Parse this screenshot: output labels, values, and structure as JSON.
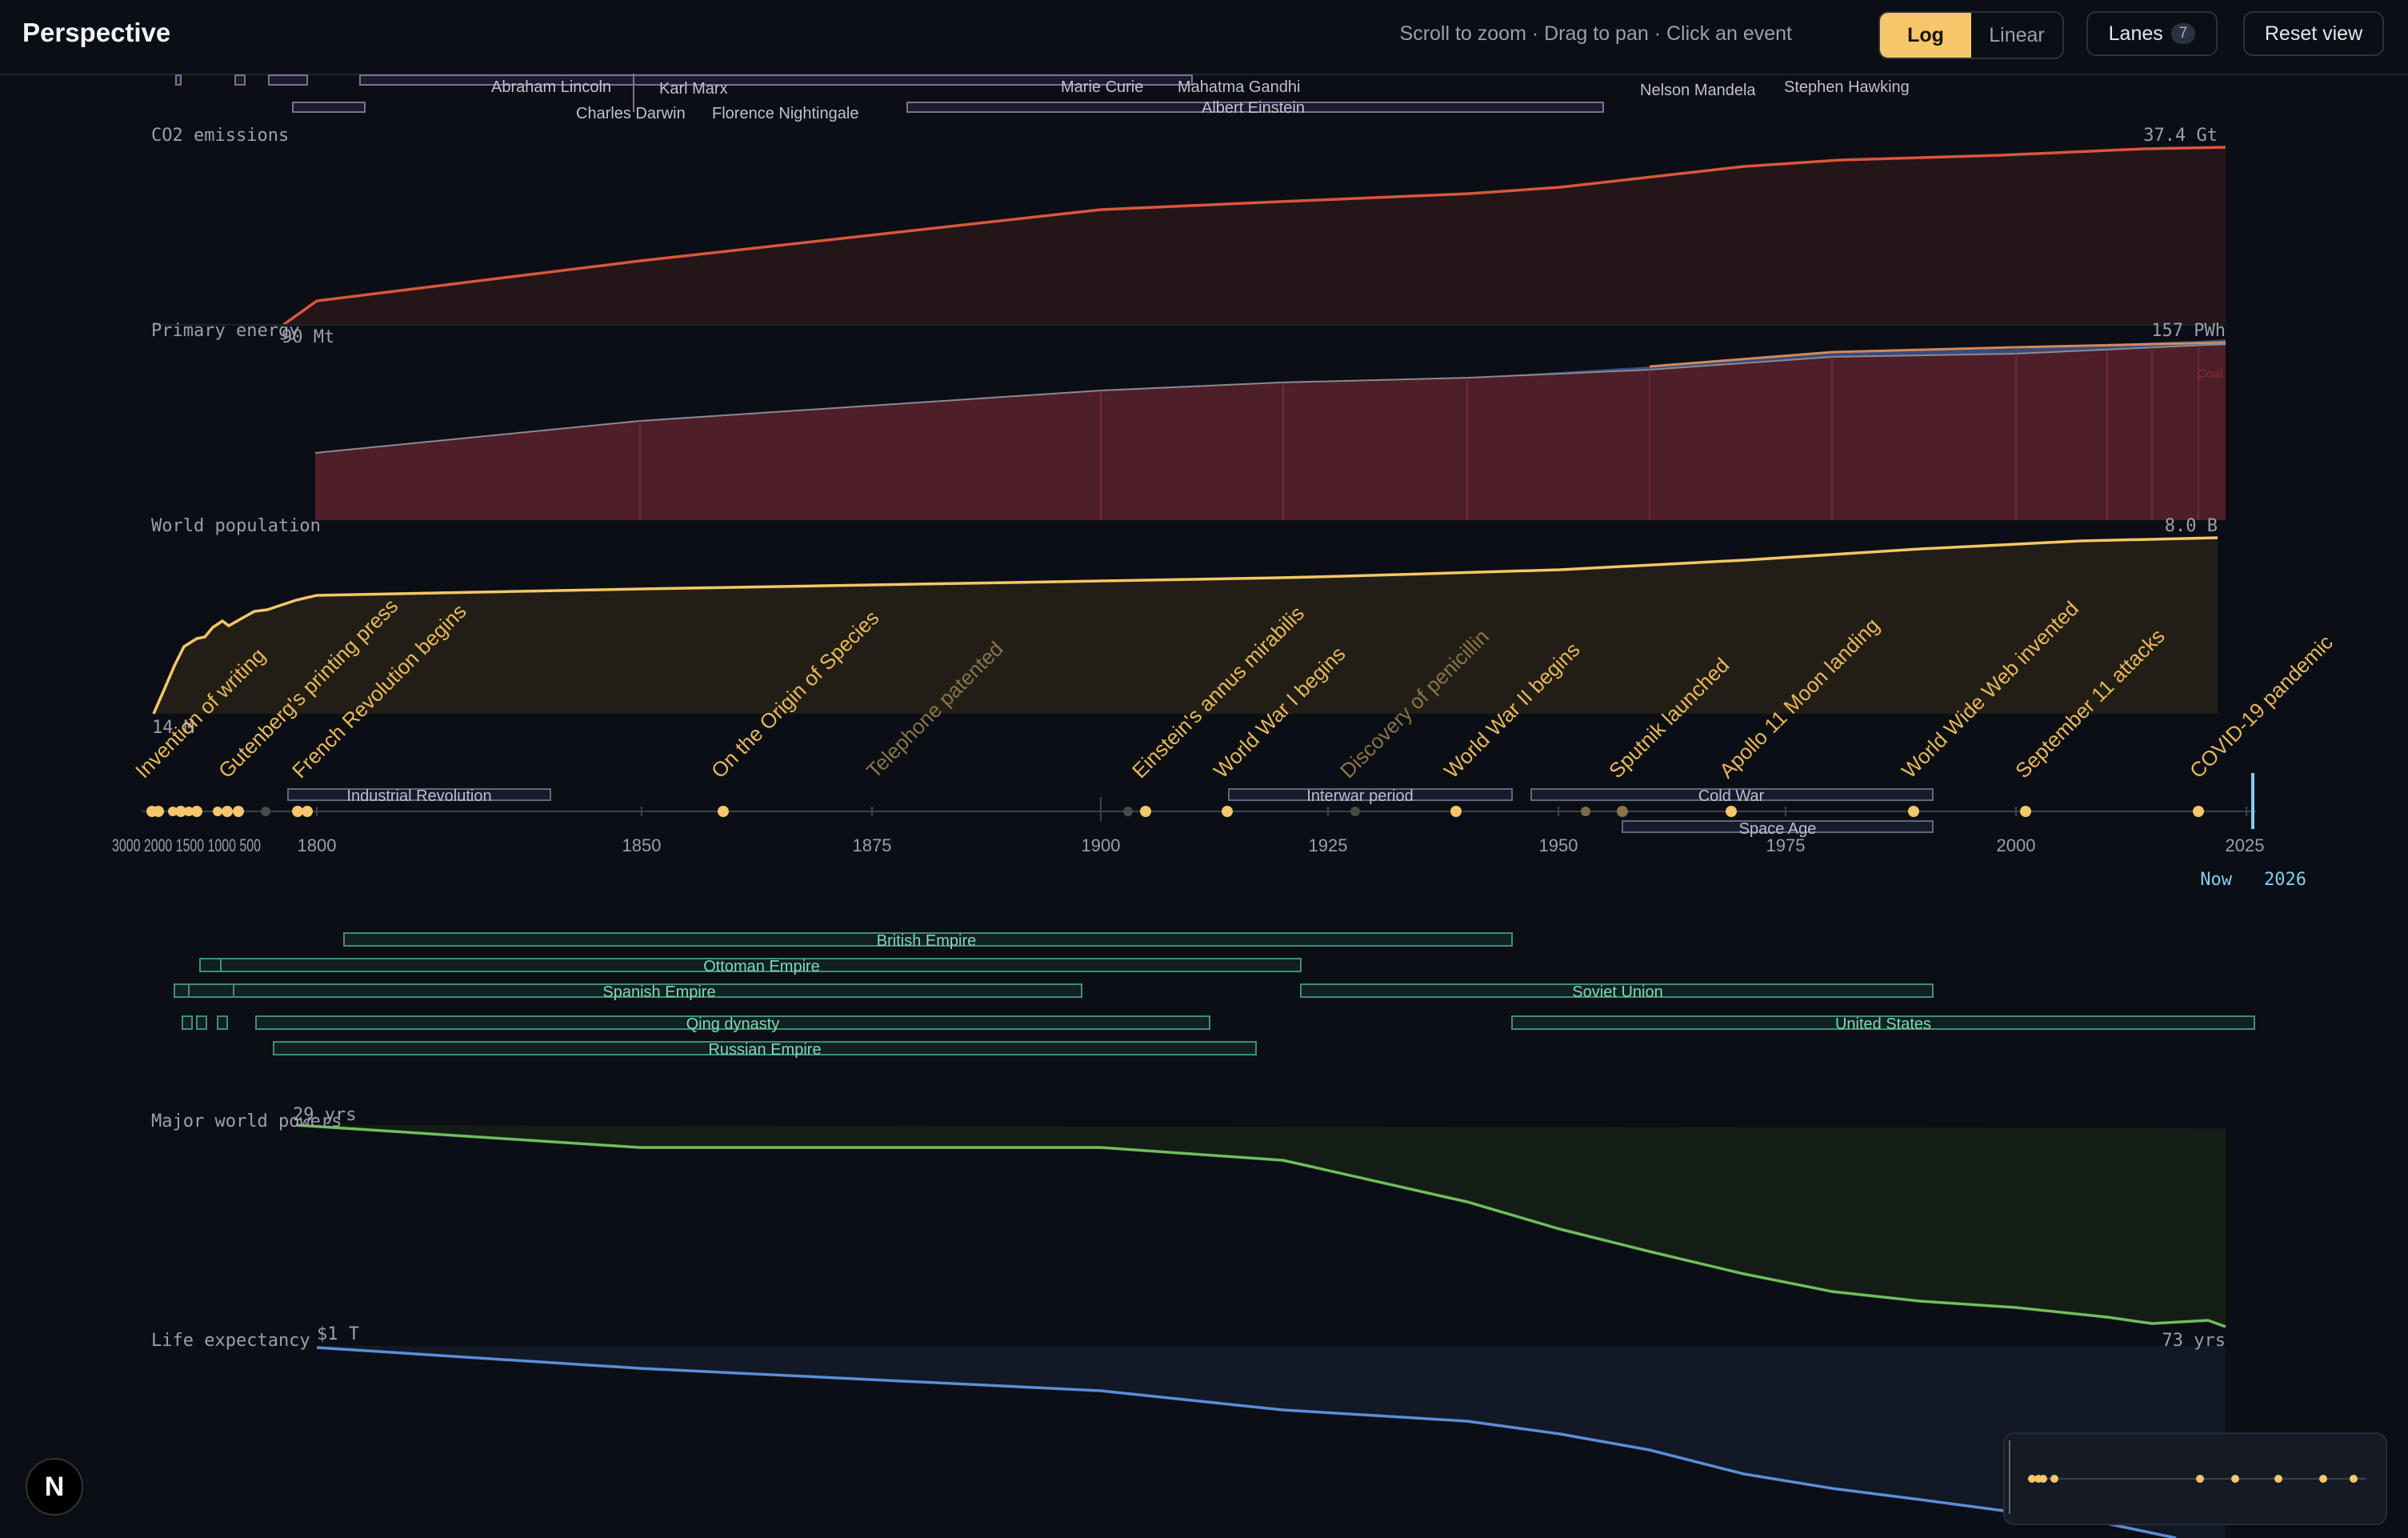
{
  "header": {
    "title": "Perspective",
    "hint": "Scroll to zoom · Drag to pan · Click an event",
    "scale_options": [
      "Log",
      "Linear"
    ],
    "active_scale": "Log",
    "lanes_label": "Lanes",
    "lanes_count": "7",
    "reset_label": "Reset view"
  },
  "axis": {
    "ticks": [
      "1800",
      "1850",
      "1875",
      "1900",
      "1925",
      "1950",
      "1975",
      "2000",
      "2025"
    ],
    "compressed_ticks": "3000 2000 1500 1000 500",
    "now_label": "Now",
    "now_year": "2026"
  },
  "people": [
    "Abraham Lincoln",
    "Karl Marx",
    "Charles Darwin",
    "Florence Nightingale",
    "Marie Curie",
    "Mahatma Gandhi",
    "Albert Einstein",
    "Nelson Mandela",
    "Stephen Hawking"
  ],
  "lanes": {
    "co2": {
      "label": "CO2 emissions",
      "max_label": "37.4 Gt",
      "min_label": "90 Mt"
    },
    "energy": {
      "label": "Primary energy",
      "max_label": "157 PWh",
      "source_label": "Coal"
    },
    "population": {
      "label": "World population",
      "max_label": "8.0 B",
      "min_label": "14 M"
    },
    "powers": {
      "label": "Major world powers",
      "max_label": "29 yrs"
    },
    "life": {
      "label": "Life expectancy",
      "max_label": "$1 T",
      "end_label": "73 yrs"
    }
  },
  "events": [
    "Invention of writing",
    "Gutenberg's printing press",
    "French Revolution begins",
    "On the Origin of Species",
    "Telephone patented",
    "Einstein's annus mirabilis",
    "World War I begins",
    "Discovery of penicillin",
    "World War II begins",
    "Sputnik launched",
    "Apollo 11 Moon landing",
    "World Wide Web invented",
    "September 11 attacks",
    "COVID-19 pandemic"
  ],
  "periods": [
    "Industrial Revolution",
    "Interwar period",
    "Cold War",
    "Space Age"
  ],
  "empires": [
    "British Empire",
    "Ottoman Empire",
    "Spanish Empire",
    "Soviet Union",
    "Qing dynasty",
    "United States",
    "Russian Empire"
  ],
  "colors": {
    "accent": "#f5c76a",
    "co2": "#d9573c",
    "energy": "#6b2630",
    "population": "#f5c76a",
    "powers": "#6fbf5c",
    "life": "#5b8fd8",
    "empire": "#5fbf9f",
    "period": "#7f8aa8"
  },
  "footer": {
    "badge": "N"
  }
}
